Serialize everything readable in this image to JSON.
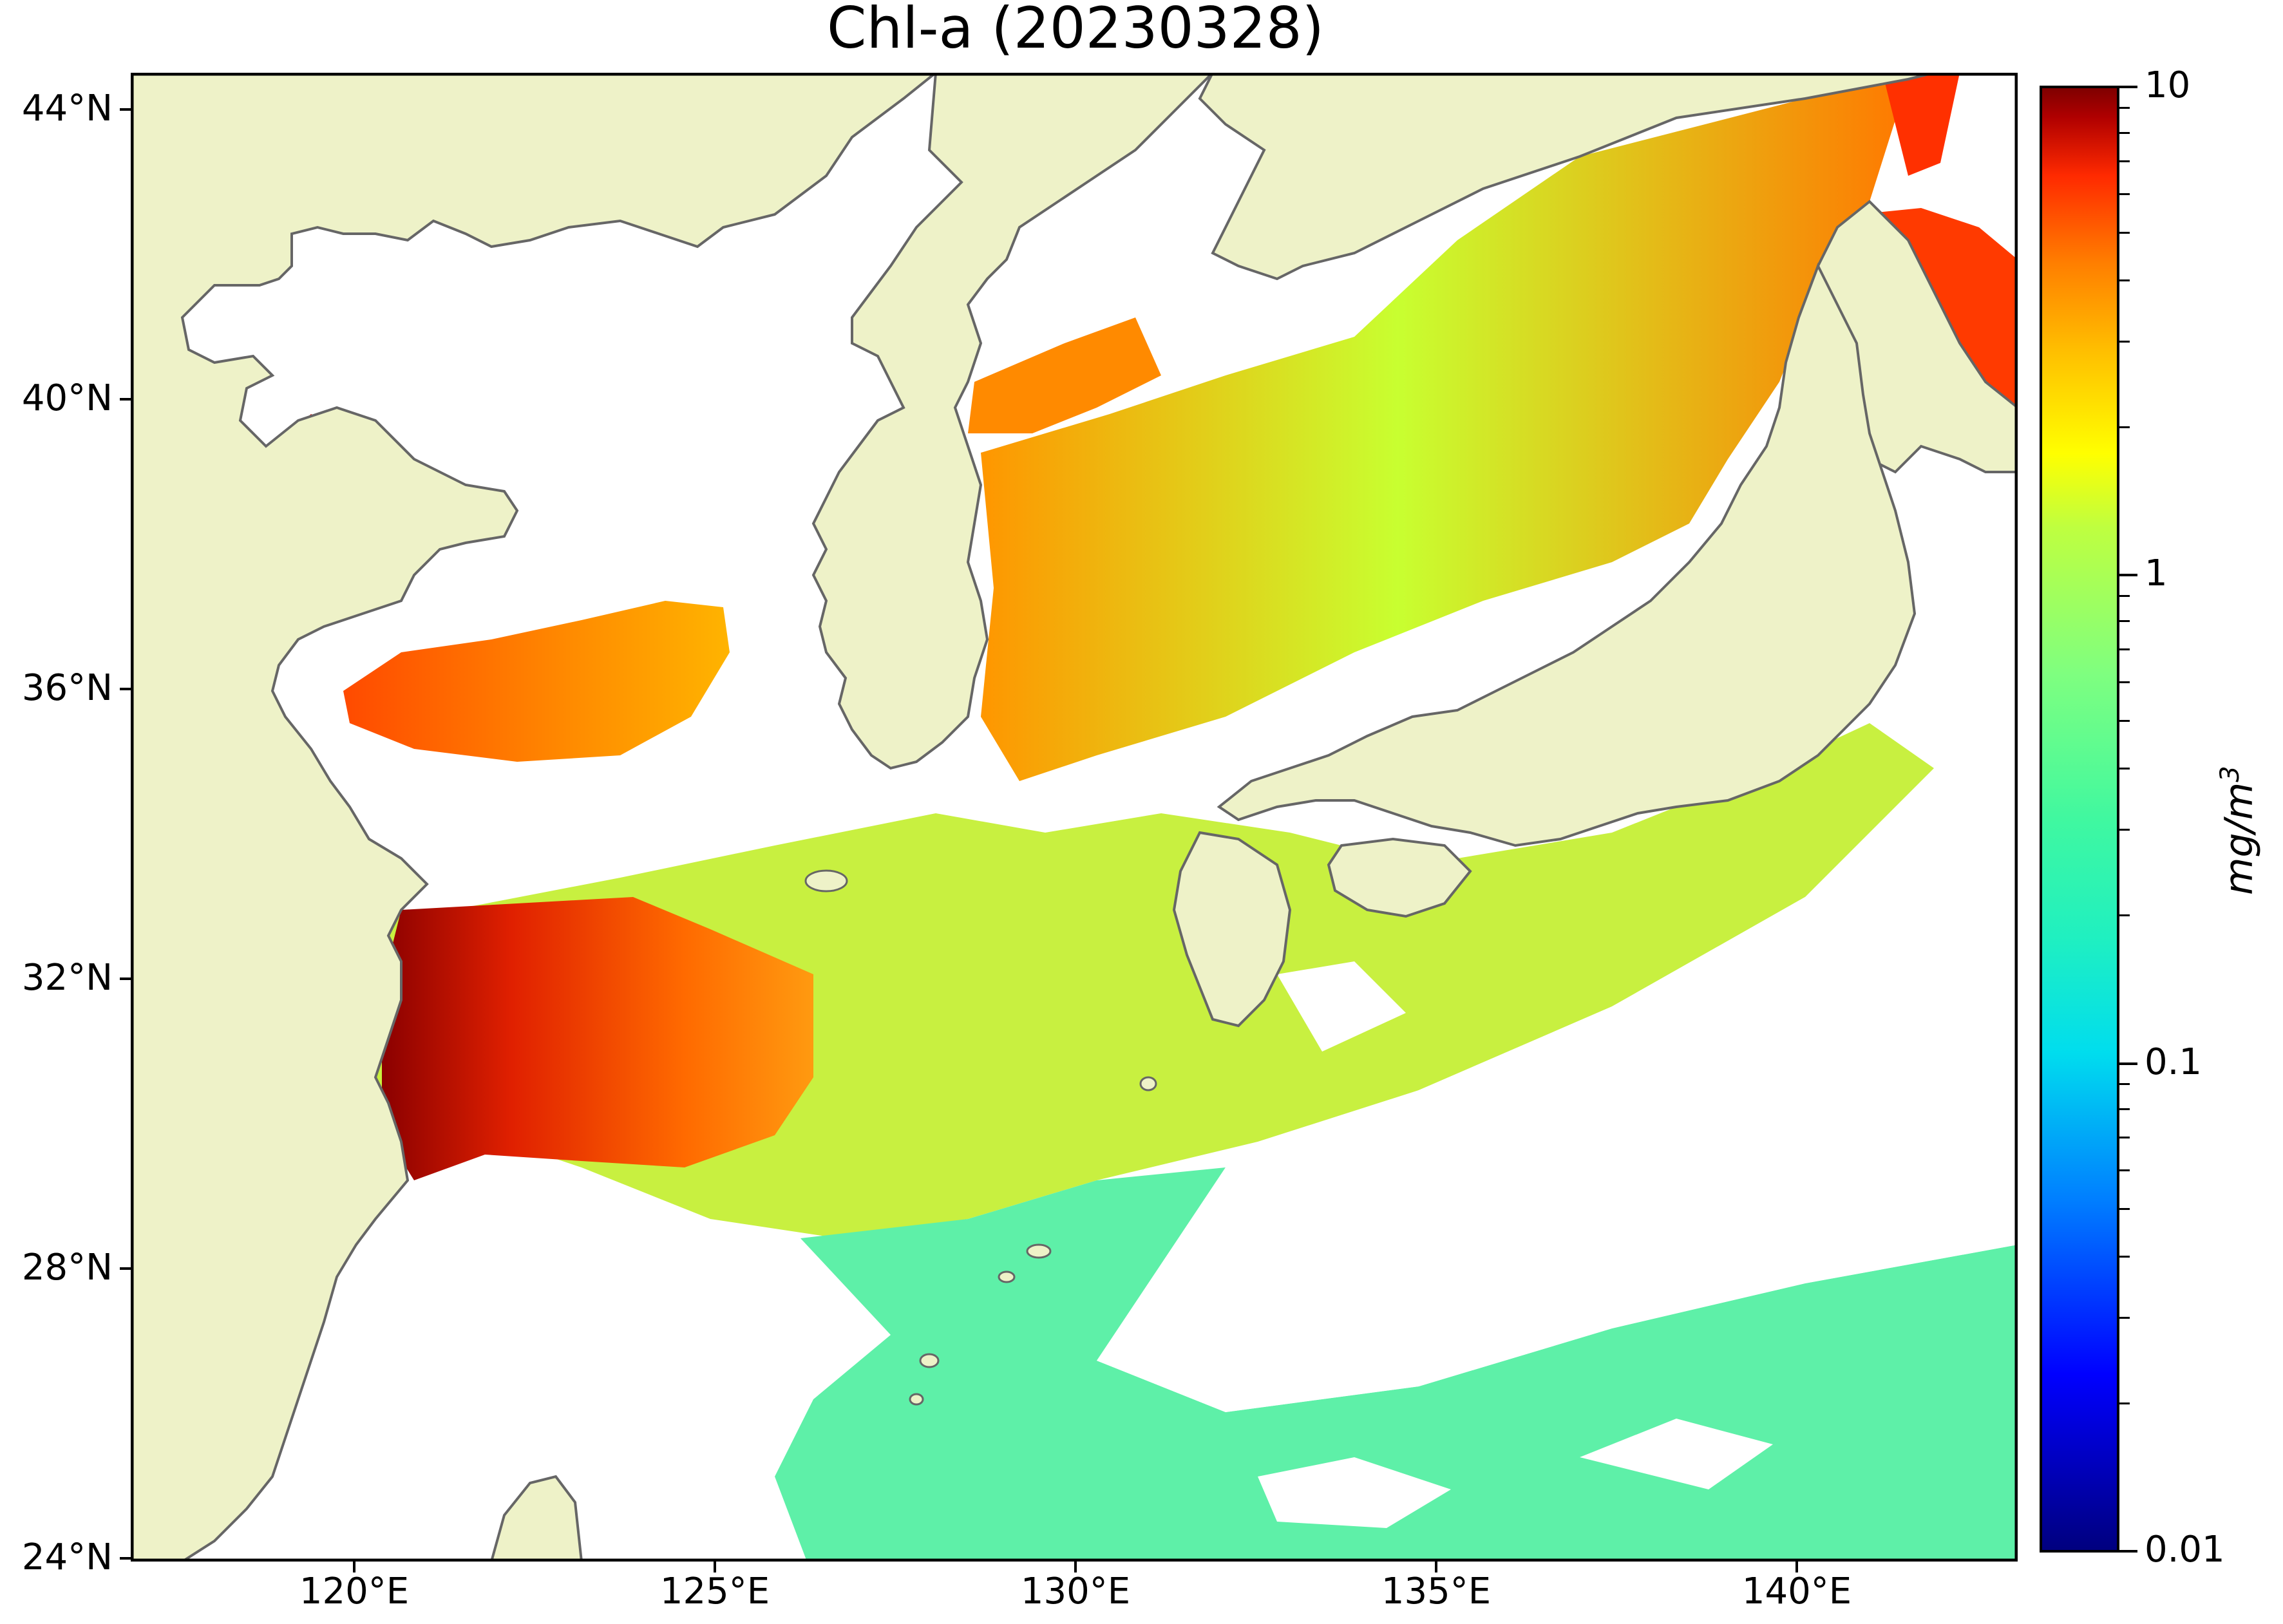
{
  "title": "Chl-a (20230328)",
  "map": {
    "lat_labels": [
      "44°N",
      "40°N",
      "36°N",
      "32°N",
      "28°N",
      "24°N"
    ],
    "lon_labels": [
      "120°E",
      "125°E",
      "130°E",
      "135°E",
      "140°E"
    ],
    "land_color": "#eef2c8",
    "coast_color": "#666666",
    "no_data_color": "#ffffff"
  },
  "colorbar": {
    "labels": [
      "10",
      "1",
      "0.1",
      "0.01"
    ],
    "unit": "mg/m",
    "unit_exponent": "3",
    "scale": "log",
    "range": [
      0.01,
      10
    ],
    "colormap": "jet"
  }
}
